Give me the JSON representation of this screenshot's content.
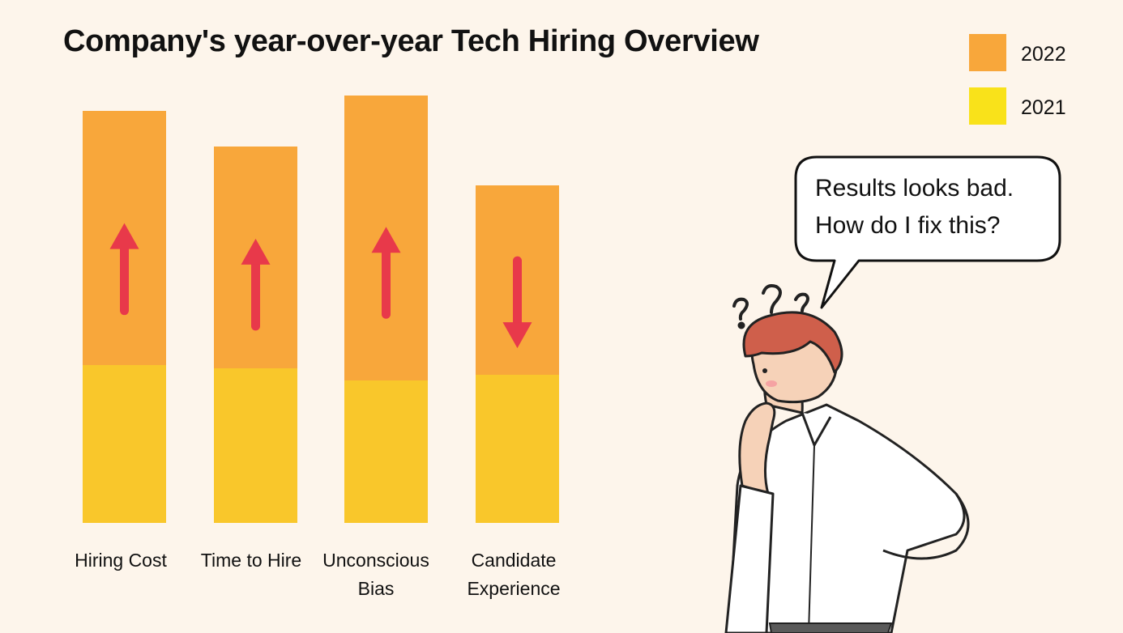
{
  "title": "Company's year-over-year Tech Hiring Overview",
  "legend": [
    {
      "label": "2022",
      "color": "#f8a73b"
    },
    {
      "label": "2021",
      "color": "#f9e21a"
    }
  ],
  "speech": {
    "line1": "Results looks bad.",
    "line2": "How do I fix this?"
  },
  "chart_data": {
    "type": "bar",
    "stacked": true,
    "categories": [
      "Hiring Cost",
      "Time to Hire",
      "Unconscious Bias",
      "Candidate Experience"
    ],
    "series": [
      {
        "name": "2021",
        "color": "#f9c72b",
        "values": [
          195,
          191,
          176,
          183
        ]
      },
      {
        "name": "2022",
        "color": "#f8a73b",
        "values": [
          314,
          274,
          352,
          234
        ]
      }
    ],
    "trend": [
      "up",
      "up",
      "up",
      "down"
    ],
    "trend_color": "#e8394a",
    "axis_visible": false
  }
}
